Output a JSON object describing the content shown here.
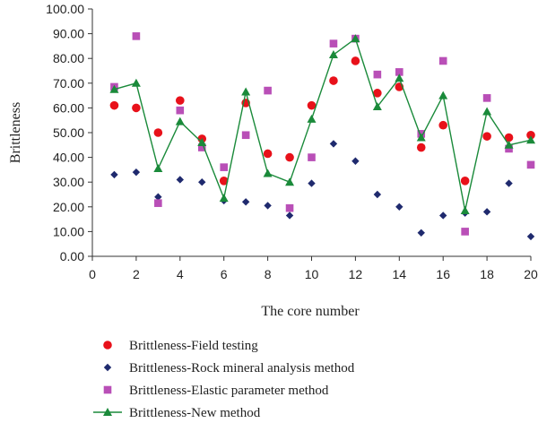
{
  "chart_data": {
    "type": "scatter",
    "title": "",
    "xlabel": "The core number",
    "ylabel": "Brittleness",
    "xlim": [
      0,
      20
    ],
    "ylim": [
      0,
      100
    ],
    "xticks": [
      "0",
      "2",
      "4",
      "6",
      "8",
      "10",
      "12",
      "14",
      "16",
      "18",
      "20"
    ],
    "yticks": [
      "0.00",
      "10.00",
      "20.00",
      "30.00",
      "40.00",
      "50.00",
      "60.00",
      "70.00",
      "80.00",
      "90.00",
      "100.00"
    ],
    "grid": false,
    "legend_position": "bottom",
    "x": [
      1,
      2,
      3,
      4,
      5,
      6,
      7,
      8,
      9,
      10,
      11,
      12,
      13,
      14,
      15,
      16,
      17,
      18,
      19,
      20
    ],
    "series": [
      {
        "name": "Brittleness-Field testing",
        "marker": "circle",
        "color": "#e8111a",
        "line": false,
        "values": [
          61.0,
          60.0,
          50.0,
          63.0,
          47.5,
          30.5,
          62.0,
          41.5,
          40.0,
          61.0,
          71.0,
          79.0,
          66.0,
          68.5,
          44.0,
          53.0,
          30.5,
          48.5,
          48.0,
          49.0
        ]
      },
      {
        "name": "Brittleness-Rock mineral analysis method",
        "marker": "diamond",
        "color": "#1f2a6e",
        "line": false,
        "values": [
          33.0,
          34.0,
          24.0,
          31.0,
          30.0,
          22.5,
          22.0,
          20.5,
          16.5,
          29.5,
          45.5,
          38.5,
          25.0,
          20.0,
          9.5,
          16.5,
          17.5,
          18.0,
          29.5,
          8.0
        ]
      },
      {
        "name": "Brittleness-Elastic parameter method",
        "marker": "square",
        "color": "#b94fb7",
        "line": false,
        "values": [
          68.5,
          89.0,
          21.5,
          59.0,
          44.0,
          36.0,
          49.0,
          67.0,
          19.5,
          40.0,
          86.0,
          88.0,
          73.5,
          74.5,
          49.5,
          79.0,
          10.0,
          64.0,
          43.5,
          37.0
        ]
      },
      {
        "name": "Brittleness-New method",
        "marker": "triangle",
        "color": "#1a8a3a",
        "line": true,
        "values": [
          67.5,
          70.0,
          35.5,
          54.5,
          46.0,
          23.5,
          66.5,
          33.5,
          30.0,
          55.5,
          81.5,
          88.0,
          60.5,
          72.0,
          48.0,
          65.0,
          18.5,
          58.5,
          45.0,
          47.0
        ]
      }
    ]
  }
}
